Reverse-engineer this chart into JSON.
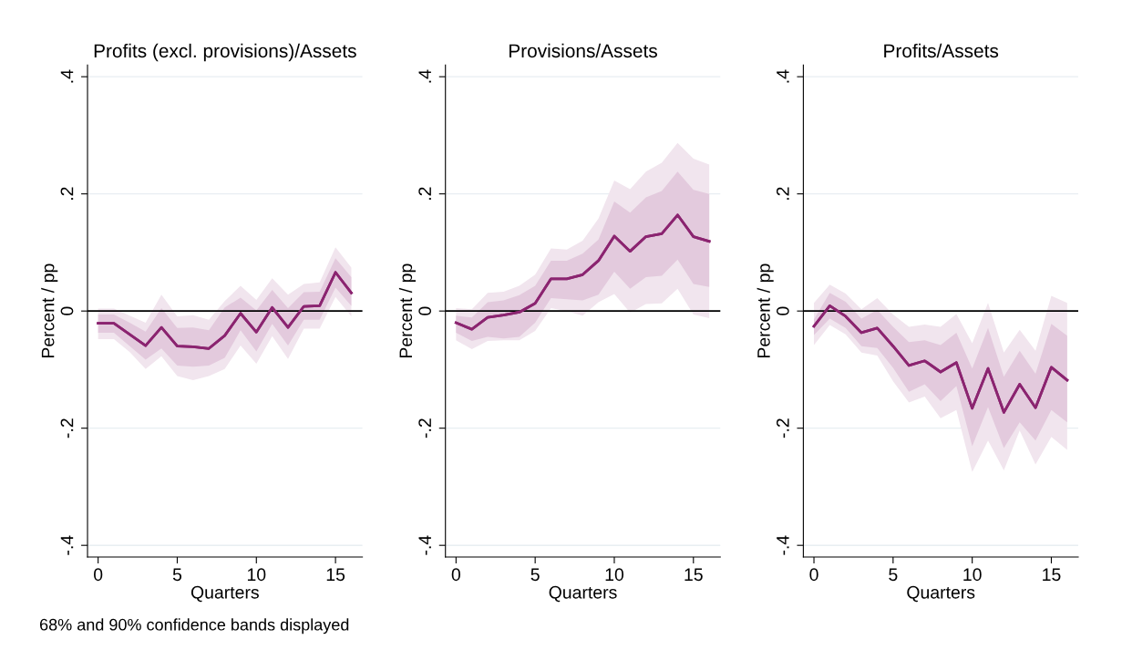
{
  "chart_data": [
    {
      "type": "line",
      "title": "Profits (excl. provisions)/Assets",
      "xlabel": "Quarters",
      "ylabel": "Percent / pp",
      "x": [
        0,
        1,
        2,
        3,
        4,
        5,
        6,
        7,
        8,
        9,
        10,
        11,
        12,
        13,
        14,
        15,
        16
      ],
      "xlim": [
        -0.67,
        16.7
      ],
      "xticks": [
        0,
        5,
        10,
        15
      ],
      "ylim": [
        -0.42,
        0.42
      ],
      "yticks": [
        {
          "value": -0.4,
          "label": "-.4"
        },
        {
          "value": -0.2,
          "label": "-.2"
        },
        {
          "value": 0,
          "label": "0"
        },
        {
          "value": 0.2,
          "label": ".2"
        },
        {
          "value": 0.4,
          "label": ".4"
        }
      ],
      "grid": "y",
      "marker": "none",
      "line_style": "solid",
      "ref_lines": [
        {
          "axis": "y",
          "value": 0,
          "color": "#000000"
        }
      ],
      "series": [
        {
          "color": "#8b2470",
          "values": [
            -0.021,
            -0.021,
            -0.04,
            -0.059,
            -0.028,
            -0.06,
            -0.061,
            -0.064,
            -0.042,
            -0.004,
            -0.036,
            0.006,
            -0.028,
            0.008,
            0.009,
            0.066,
            0.031
          ],
          "lower": [
            -0.048,
            -0.048,
            -0.07,
            -0.099,
            -0.077,
            -0.111,
            -0.118,
            -0.111,
            -0.099,
            -0.059,
            -0.09,
            -0.043,
            -0.082,
            -0.03,
            -0.03,
            0.024,
            -0.009
          ],
          "upper": [
            0.004,
            0.004,
            -0.008,
            -0.02,
            0.028,
            -0.009,
            -0.007,
            -0.015,
            0.017,
            0.043,
            0.019,
            0.056,
            0.028,
            0.046,
            0.049,
            0.109,
            0.074
          ]
        },
        {
          "color": "#8b2470",
          "values": [
            -0.021,
            -0.021,
            -0.04,
            -0.059,
            -0.028,
            -0.06,
            -0.061,
            -0.064,
            -0.042,
            -0.004,
            -0.036,
            0.006,
            -0.028,
            0.008,
            0.009,
            0.066,
            0.031
          ],
          "lower": [
            -0.037,
            -0.037,
            -0.06,
            -0.083,
            -0.064,
            -0.093,
            -0.095,
            -0.093,
            -0.08,
            -0.033,
            -0.069,
            -0.022,
            -0.059,
            -0.015,
            -0.015,
            0.04,
            0.009
          ],
          "upper": [
            -0.006,
            -0.006,
            -0.02,
            -0.035,
            0.005,
            -0.029,
            -0.028,
            -0.033,
            0.006,
            0.023,
            0.001,
            0.036,
            0.005,
            0.032,
            0.033,
            0.09,
            0.058
          ]
        }
      ]
    },
    {
      "type": "line",
      "title": "Provisions/Assets",
      "xlabel": "Quarters",
      "ylabel": "Percent / pp",
      "x": [
        0,
        1,
        2,
        3,
        4,
        5,
        6,
        7,
        8,
        9,
        10,
        11,
        12,
        13,
        14,
        15,
        16
      ],
      "xlim": [
        -0.67,
        16.7
      ],
      "xticks": [
        0,
        5,
        10,
        15
      ],
      "ylim": [
        -0.42,
        0.42
      ],
      "yticks": [
        {
          "value": -0.4,
          "label": "-.4"
        },
        {
          "value": -0.2,
          "label": "-.2"
        },
        {
          "value": 0,
          "label": "0"
        },
        {
          "value": 0.2,
          "label": ".2"
        },
        {
          "value": 0.4,
          "label": ".4"
        }
      ],
      "grid": "y",
      "marker": "none",
      "line_style": "solid",
      "ref_lines": [
        {
          "axis": "y",
          "value": 0,
          "color": "#000000"
        }
      ],
      "series": [
        {
          "color": "#8b2470",
          "values": [
            -0.02,
            -0.031,
            -0.011,
            -0.007,
            -0.002,
            0.013,
            0.055,
            0.055,
            0.062,
            0.086,
            0.128,
            0.102,
            0.127,
            0.132,
            0.164,
            0.127,
            0.119
          ],
          "lower": [
            -0.05,
            -0.065,
            -0.051,
            -0.05,
            -0.05,
            -0.034,
            0.005,
            0.0,
            -0.008,
            0.015,
            0.029,
            -0.003,
            0.012,
            0.013,
            0.038,
            -0.006,
            -0.012
          ],
          "upper": [
            0.005,
            0.003,
            0.031,
            0.033,
            0.043,
            0.062,
            0.107,
            0.105,
            0.12,
            0.158,
            0.223,
            0.208,
            0.238,
            0.253,
            0.287,
            0.26,
            0.25
          ]
        },
        {
          "color": "#8b2470",
          "values": [
            -0.02,
            -0.031,
            -0.011,
            -0.007,
            -0.002,
            0.013,
            0.055,
            0.055,
            0.062,
            0.086,
            0.128,
            0.102,
            0.127,
            0.132,
            0.164,
            0.127,
            0.119
          ],
          "lower": [
            -0.037,
            -0.051,
            -0.044,
            -0.047,
            -0.044,
            -0.02,
            0.022,
            0.02,
            0.018,
            0.028,
            0.067,
            0.038,
            0.058,
            0.06,
            0.088,
            0.046,
            0.041
          ],
          "upper": [
            -0.008,
            -0.011,
            0.015,
            0.018,
            0.027,
            0.043,
            0.086,
            0.086,
            0.098,
            0.122,
            0.187,
            0.168,
            0.194,
            0.205,
            0.238,
            0.207,
            0.2
          ]
        }
      ]
    },
    {
      "type": "line",
      "title": "Profits/Assets",
      "xlabel": "Quarters",
      "ylabel": "Percent / pp",
      "x": [
        0,
        1,
        2,
        3,
        4,
        5,
        6,
        7,
        8,
        9,
        10,
        11,
        12,
        13,
        14,
        15,
        16
      ],
      "xlim": [
        -0.67,
        16.7
      ],
      "xticks": [
        0,
        5,
        10,
        15
      ],
      "ylim": [
        -0.42,
        0.42
      ],
      "yticks": [
        {
          "value": -0.4,
          "label": "-.4"
        },
        {
          "value": -0.2,
          "label": "-.2"
        },
        {
          "value": 0,
          "label": "0"
        },
        {
          "value": 0.2,
          "label": ".2"
        },
        {
          "value": 0.4,
          "label": ".4"
        }
      ],
      "grid": "y",
      "marker": "none",
      "line_style": "solid",
      "ref_lines": [
        {
          "axis": "y",
          "value": 0,
          "color": "#000000"
        }
      ],
      "annotations": [
        "68% and 90% confidence bands displayed"
      ],
      "series": [
        {
          "color": "#8b2470",
          "values": [
            -0.026,
            0.009,
            -0.009,
            -0.037,
            -0.029,
            -0.06,
            -0.093,
            -0.085,
            -0.104,
            -0.088,
            -0.166,
            -0.098,
            -0.173,
            -0.125,
            -0.165,
            -0.096,
            -0.118
          ],
          "lower": [
            -0.058,
            -0.024,
            -0.04,
            -0.071,
            -0.076,
            -0.12,
            -0.156,
            -0.146,
            -0.183,
            -0.169,
            -0.275,
            -0.221,
            -0.272,
            -0.204,
            -0.262,
            -0.215,
            -0.237
          ],
          "upper": [
            0.014,
            0.045,
            0.03,
            0.003,
            0.022,
            -0.006,
            -0.027,
            -0.023,
            -0.027,
            -0.005,
            -0.055,
            0.014,
            -0.071,
            -0.032,
            -0.068,
            0.026,
            0.014
          ]
        },
        {
          "color": "#8b2470",
          "values": [
            -0.026,
            0.009,
            -0.009,
            -0.037,
            -0.029,
            -0.06,
            -0.093,
            -0.085,
            -0.104,
            -0.088,
            -0.166,
            -0.098,
            -0.173,
            -0.125,
            -0.165,
            -0.096,
            -0.118
          ],
          "lower": [
            -0.041,
            -0.013,
            -0.029,
            -0.06,
            -0.063,
            -0.097,
            -0.138,
            -0.125,
            -0.154,
            -0.128,
            -0.231,
            -0.164,
            -0.234,
            -0.19,
            -0.221,
            -0.169,
            -0.19
          ],
          "upper": [
            -0.014,
            0.031,
            0.016,
            -0.013,
            0.002,
            -0.027,
            -0.053,
            -0.05,
            -0.058,
            -0.037,
            -0.098,
            -0.029,
            -0.112,
            -0.068,
            -0.107,
            -0.022,
            -0.042
          ]
        }
      ]
    }
  ]
}
